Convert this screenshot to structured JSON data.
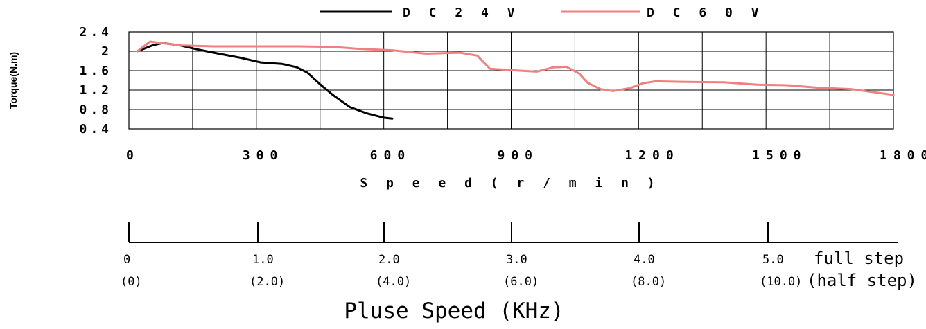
{
  "chart_data": {
    "type": "line",
    "title": "",
    "xlabel": "S p e e d ( r / m i n )",
    "ylabel": "Torque(N.m)",
    "xlim": [
      0,
      1800
    ],
    "ylim": [
      0.4,
      2.4
    ],
    "x_ticks": [
      "0",
      "300",
      "600",
      "900",
      "1200",
      "1500",
      "1800"
    ],
    "y_ticks": [
      "2.4",
      "2",
      "1.6",
      "1.2",
      "0.8",
      "0.4"
    ],
    "grid": true,
    "legend": {
      "placement": "top",
      "items": [
        {
          "name": "D C 2 4 V",
          "color": "#000000"
        },
        {
          "name": "D C 6 0 V",
          "color": "#f08080"
        }
      ]
    },
    "series": [
      {
        "name": "D C 2 4 V",
        "color": "#000000",
        "points": [
          [
            20,
            2.0
          ],
          [
            35,
            2.05
          ],
          [
            55,
            2.12
          ],
          [
            80,
            2.17
          ],
          [
            120,
            2.12
          ],
          [
            160,
            2.04
          ],
          [
            200,
            1.97
          ],
          [
            260,
            1.87
          ],
          [
            310,
            1.77
          ],
          [
            360,
            1.74
          ],
          [
            395,
            1.67
          ],
          [
            420,
            1.56
          ],
          [
            450,
            1.32
          ],
          [
            480,
            1.1
          ],
          [
            520,
            0.85
          ],
          [
            560,
            0.72
          ],
          [
            600,
            0.63
          ],
          [
            620,
            0.61
          ]
        ]
      },
      {
        "name": "D C 6 0 V",
        "color": "#f08080",
        "points": [
          [
            20,
            2.0
          ],
          [
            35,
            2.1
          ],
          [
            50,
            2.2
          ],
          [
            65,
            2.18
          ],
          [
            85,
            2.16
          ],
          [
            120,
            2.12
          ],
          [
            200,
            2.1
          ],
          [
            300,
            2.1
          ],
          [
            400,
            2.1
          ],
          [
            480,
            2.09
          ],
          [
            540,
            2.05
          ],
          [
            620,
            2.02
          ],
          [
            700,
            1.95
          ],
          [
            780,
            1.97
          ],
          [
            820,
            1.91
          ],
          [
            850,
            1.64
          ],
          [
            900,
            1.61
          ],
          [
            960,
            1.58
          ],
          [
            1000,
            1.67
          ],
          [
            1030,
            1.68
          ],
          [
            1060,
            1.54
          ],
          [
            1080,
            1.35
          ],
          [
            1110,
            1.22
          ],
          [
            1140,
            1.18
          ],
          [
            1180,
            1.24
          ],
          [
            1210,
            1.34
          ],
          [
            1240,
            1.38
          ],
          [
            1300,
            1.37
          ],
          [
            1400,
            1.36
          ],
          [
            1480,
            1.31
          ],
          [
            1550,
            1.3
          ],
          [
            1620,
            1.25
          ],
          [
            1700,
            1.22
          ],
          [
            1800,
            1.1
          ]
        ]
      }
    ],
    "pulse_axis": {
      "title": "Pluse Speed (KHz)",
      "full_step_label": "full step",
      "half_step_label": "(half step)",
      "ticks": [
        {
          "full": "0",
          "half": "(0)"
        },
        {
          "full": "1.0",
          "half": "(2.0)"
        },
        {
          "full": "2.0",
          "half": "(4.0)"
        },
        {
          "full": "3.0",
          "half": "(6.0)"
        },
        {
          "full": "4.0",
          "half": "(8.0)"
        },
        {
          "full": "5.0",
          "half": "(10.0)"
        }
      ]
    }
  }
}
